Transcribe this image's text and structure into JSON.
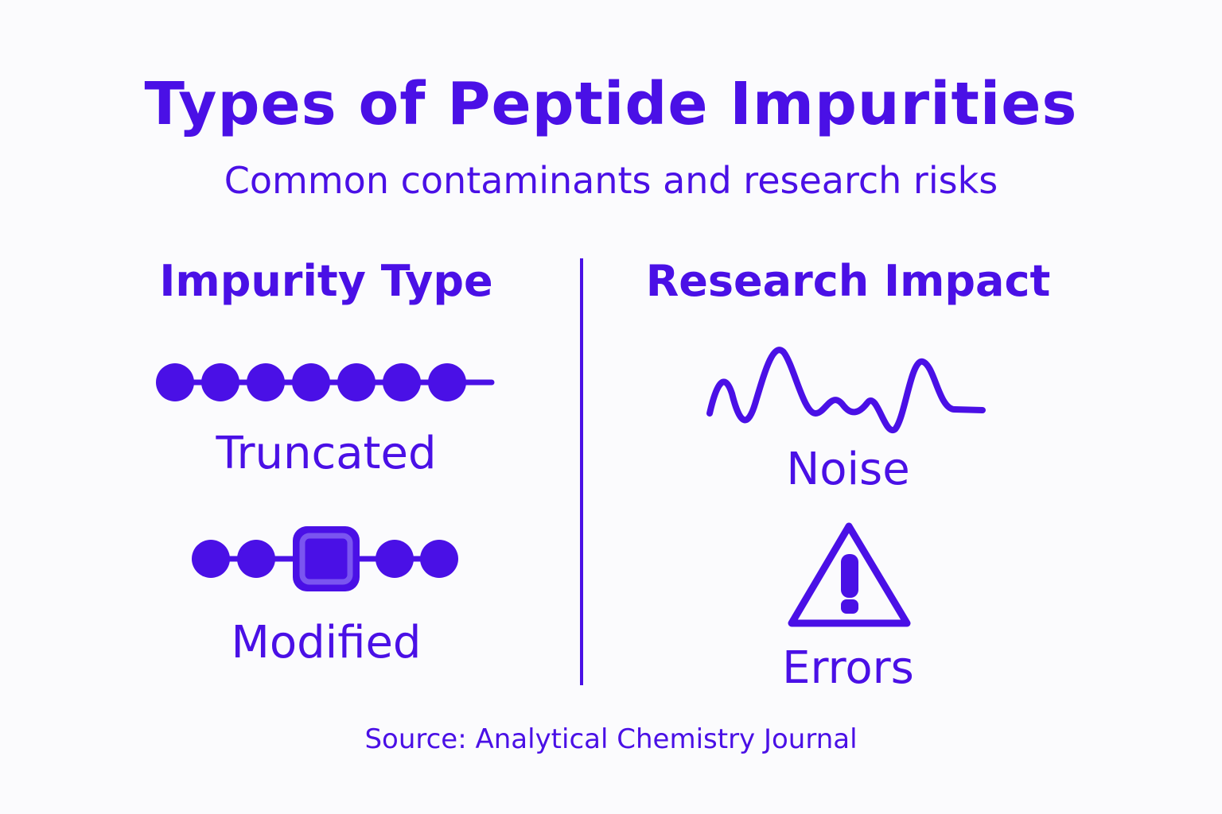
{
  "title": "Types of Peptide Impurities",
  "subtitle": "Common contaminants and research risks",
  "colors": {
    "primary": "#4a10e6",
    "accent_light": "#7a55f0",
    "background": "#fbfbfd"
  },
  "left_column": {
    "heading": "Impurity Type",
    "items": [
      {
        "label": "Truncated",
        "icon": "truncated-peptide-chain-icon"
      },
      {
        "label": "Modified",
        "icon": "modified-peptide-chain-icon"
      }
    ]
  },
  "right_column": {
    "heading": "Research Impact",
    "items": [
      {
        "label": "Noise",
        "icon": "noise-wave-icon"
      },
      {
        "label": "Errors",
        "icon": "warning-triangle-icon"
      }
    ]
  },
  "source": "Source: Analytical Chemistry Journal"
}
